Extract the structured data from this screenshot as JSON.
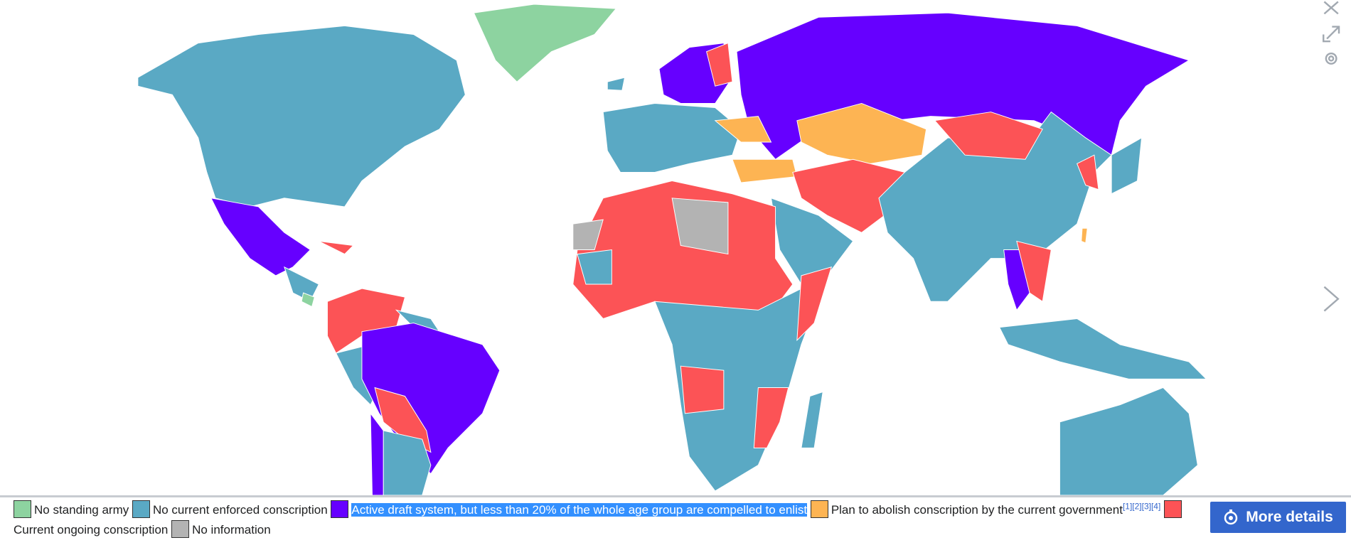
{
  "legend": [
    {
      "label": "No standing army",
      "color": "#8dd3a0"
    },
    {
      "label": "No current enforced conscription",
      "color": "#5aa9c4"
    },
    {
      "label": "Active draft system, but less than 20% of the whole age group are compelled to enlist",
      "color": "#6600ff",
      "selected": true
    },
    {
      "label": "Plan to abolish conscription by the current government",
      "color": "#fdb453",
      "references": [
        "[1]",
        "[2]",
        "[3]",
        "[4]"
      ]
    },
    {
      "label": "Current ongoing conscription",
      "color": "#fc5356"
    },
    {
      "label": "No information",
      "color": "#b3b3b3"
    }
  ],
  "button": "More details"
}
